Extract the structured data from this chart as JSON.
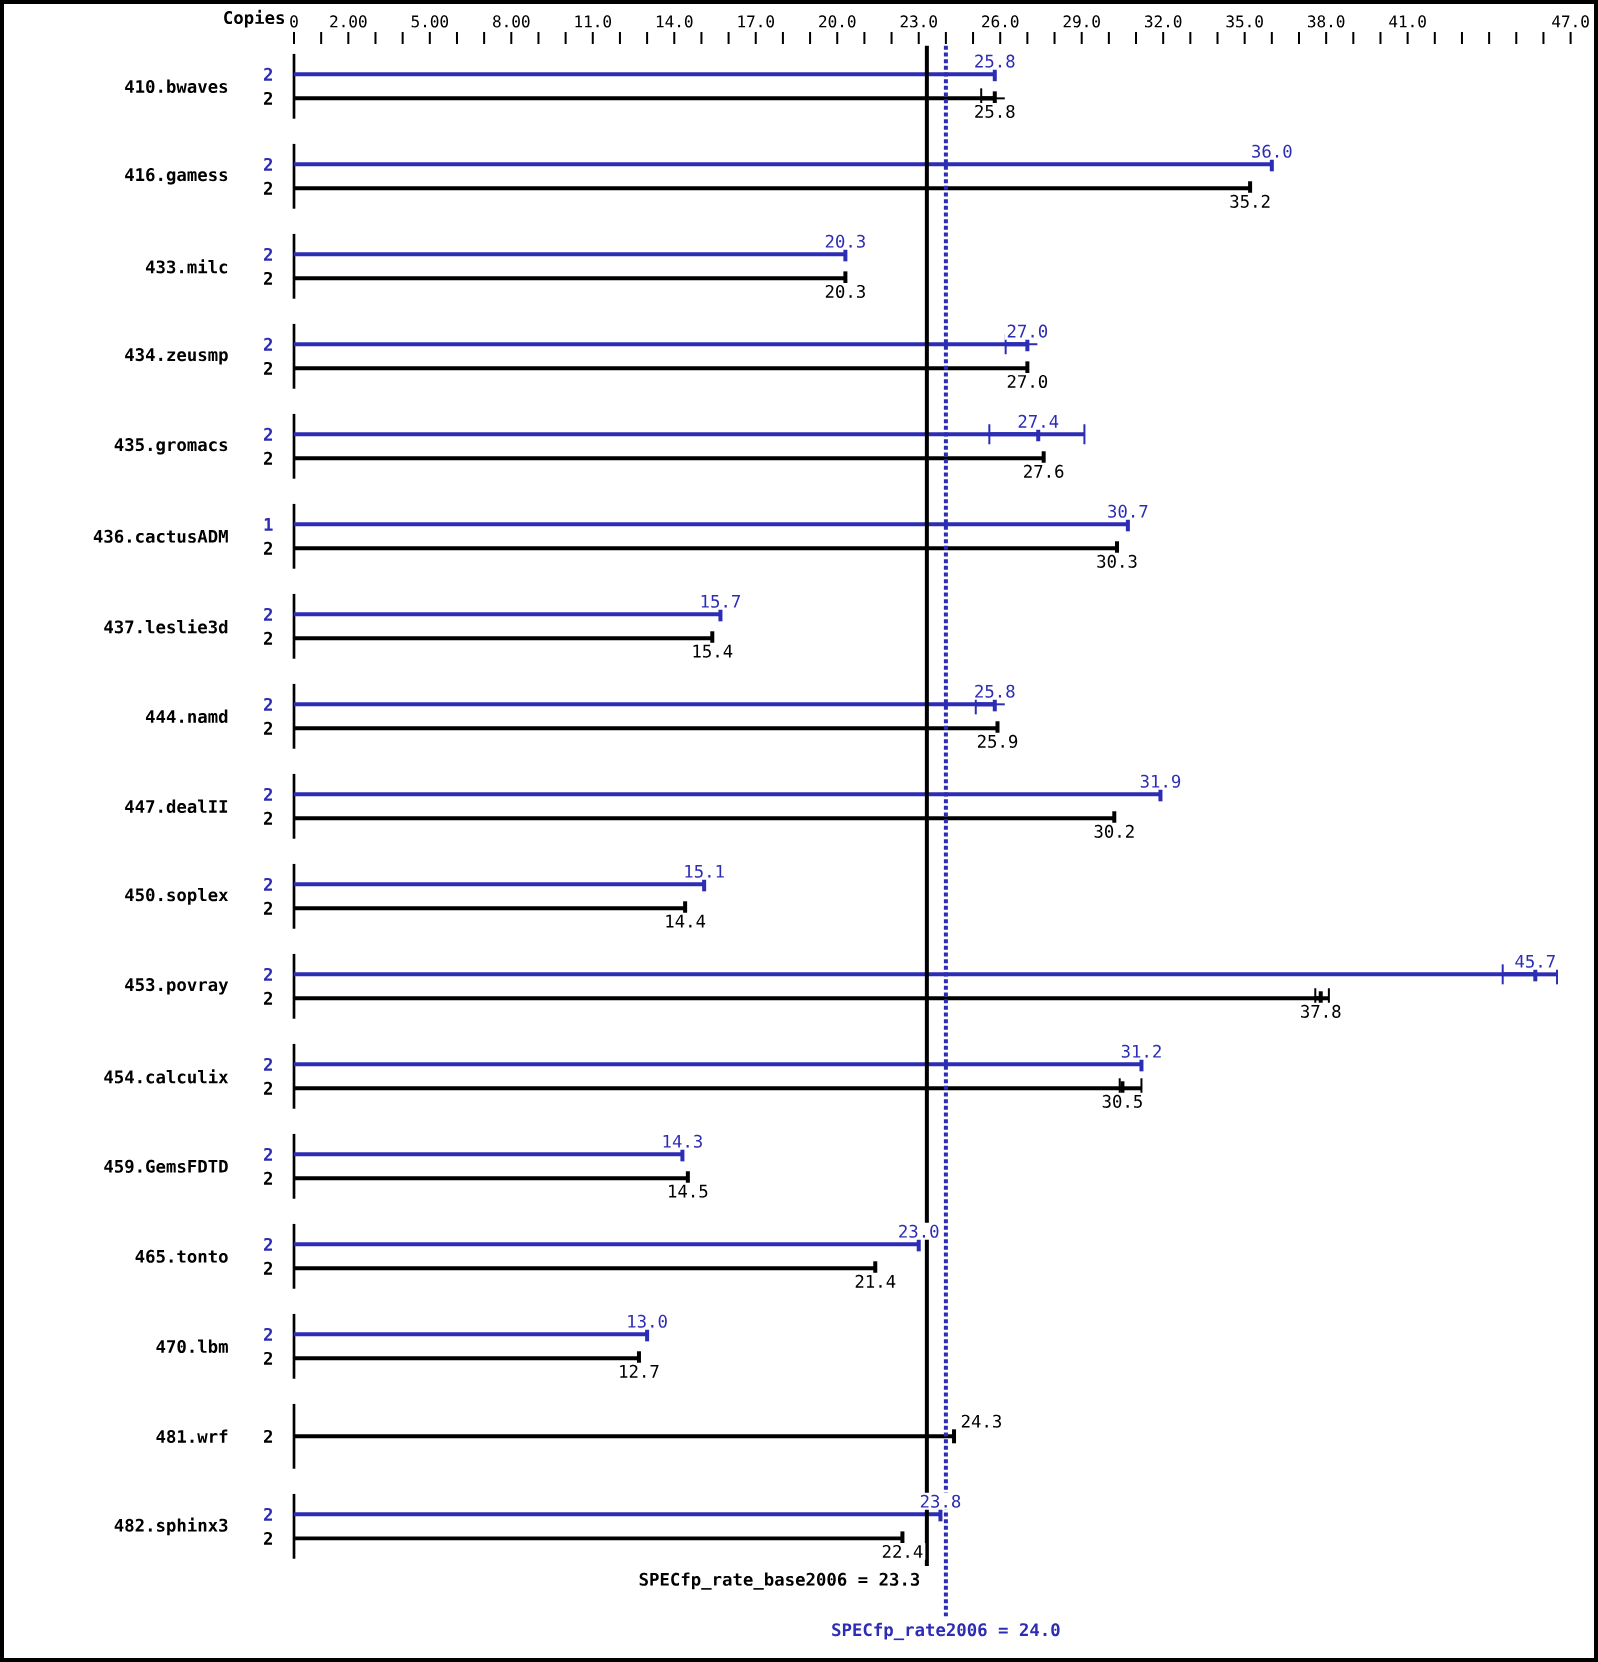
{
  "chart_data": {
    "type": "bar",
    "orientation": "horizontal",
    "categories": [
      "410.bwaves",
      "416.gamess",
      "433.milc",
      "434.zeusmp",
      "435.gromacs",
      "436.cactusADM",
      "437.leslie3d",
      "444.namd",
      "447.dealII",
      "450.soplex",
      "453.povray",
      "454.calculix",
      "459.GemsFDTD",
      "465.tonto",
      "470.lbm",
      "481.wrf",
      "482.sphinx3"
    ],
    "series": [
      {
        "color": "#2c2cb4",
        "values": [
          25.8,
          36.0,
          20.3,
          27.0,
          27.4,
          30.7,
          15.7,
          25.8,
          31.9,
          15.1,
          45.7,
          31.2,
          14.3,
          23.0,
          13.0,
          null,
          23.8
        ],
        "errors": [
          null,
          null,
          null,
          [
            26.2,
            27.0
          ],
          [
            25.6,
            29.1
          ],
          null,
          null,
          [
            25.1,
            25.8
          ],
          null,
          null,
          [
            44.5,
            46.5
          ],
          null,
          null,
          null,
          null,
          null,
          null
        ],
        "value_labels": [
          "25.8",
          "36.0",
          "20.3",
          "27.0",
          "27.4",
          "30.7",
          "15.7",
          "25.8",
          "31.9",
          "15.1",
          "45.7",
          "31.2",
          "14.3",
          "23.0",
          "13.0",
          null,
          "23.8"
        ]
      },
      {
        "color": "#000000",
        "values": [
          25.8,
          35.2,
          20.3,
          27.0,
          27.6,
          30.3,
          15.4,
          25.9,
          30.2,
          14.4,
          37.8,
          30.5,
          14.5,
          21.4,
          12.7,
          24.3,
          22.4
        ],
        "errors": [
          [
            25.3,
            25.8
          ],
          null,
          null,
          null,
          null,
          null,
          null,
          null,
          null,
          null,
          [
            37.6,
            38.1
          ],
          [
            30.4,
            31.2
          ],
          null,
          null,
          null,
          null,
          null
        ],
        "value_labels": [
          "25.8",
          "35.2",
          "20.3",
          "27.0",
          "27.6",
          "30.3",
          "15.4",
          "25.9",
          "30.2",
          "14.4",
          "37.8",
          "30.5",
          "14.5",
          "21.4",
          "12.7",
          "24.3",
          "22.4"
        ]
      }
    ],
    "xlim": [
      0,
      47
    ],
    "xticks": [
      0,
      {
        "value": 1,
        "label": null
      },
      {
        "value": 2,
        "label": "2.00"
      },
      {
        "value": 3,
        "label": null
      },
      {
        "value": 4,
        "label": null
      },
      {
        "value": 5,
        "label": "5.00"
      },
      {
        "value": 6,
        "label": null
      },
      {
        "value": 7,
        "label": null
      },
      {
        "value": 8,
        "label": "8.00"
      },
      {
        "value": 9,
        "label": null
      },
      {
        "value": 10,
        "label": null
      },
      {
        "value": 11,
        "label": "11.0"
      },
      {
        "value": 12,
        "label": null
      },
      {
        "value": 13,
        "label": null
      },
      {
        "value": 14,
        "label": "14.0"
      },
      {
        "value": 15,
        "label": null
      },
      {
        "value": 16,
        "label": null
      },
      {
        "value": 17,
        "label": "17.0"
      },
      {
        "value": 18,
        "label": null
      },
      {
        "value": 19,
        "label": null
      },
      {
        "value": 20,
        "label": "20.0"
      },
      {
        "value": 21,
        "label": null
      },
      {
        "value": 22,
        "label": null
      },
      {
        "value": 23,
        "label": "23.0"
      },
      {
        "value": 24,
        "label": null
      },
      {
        "value": 25,
        "label": null
      },
      {
        "value": 26,
        "label": "26.0"
      },
      {
        "value": 27,
        "label": null
      },
      {
        "value": 28,
        "label": null
      },
      {
        "value": 29,
        "label": "29.0"
      },
      {
        "value": 30,
        "label": null
      },
      {
        "value": 31,
        "label": null
      },
      {
        "value": 32,
        "label": "32.0"
      },
      {
        "value": 33,
        "label": null
      },
      {
        "value": 34,
        "label": null
      },
      {
        "value": 35,
        "label": "35.0"
      },
      {
        "value": 36,
        "label": null
      },
      {
        "value": 37,
        "label": null
      },
      {
        "value": 38,
        "label": "38.0"
      },
      {
        "value": 39,
        "label": null
      },
      {
        "value": 40,
        "label": null
      },
      {
        "value": 41,
        "label": "41.0"
      },
      {
        "value": 42,
        "label": null
      },
      {
        "value": 43,
        "label": null
      },
      {
        "value": 44,
        "label": null
      },
      {
        "value": 45,
        "label": null
      },
      {
        "value": 46,
        "label": null
      },
      {
        "value": 47,
        "label": "47.0"
      }
    ],
    "ref_lines": [
      {
        "axis": "x",
        "value": 23.3,
        "label": "SPECfp_rate_base2006 = 23.3",
        "color": "#000000",
        "line_style": "solid"
      },
      {
        "axis": "x",
        "value": 24.0,
        "label": "SPECfp_rate2006 = 24.0",
        "color": "#2c2cb4",
        "line_style": "dotted"
      }
    ],
    "annotations": [
      "Copies",
      "2",
      "2",
      "2",
      "2",
      "2",
      "1",
      "2",
      "2",
      "2",
      "2",
      "2",
      "2",
      "2",
      "2",
      "2",
      "2",
      "2",
      "2",
      "2",
      "2",
      "2",
      "2",
      "2",
      "2",
      "2",
      "2",
      "2",
      "2",
      "2",
      "2",
      "2",
      "2",
      "2"
    ]
  }
}
